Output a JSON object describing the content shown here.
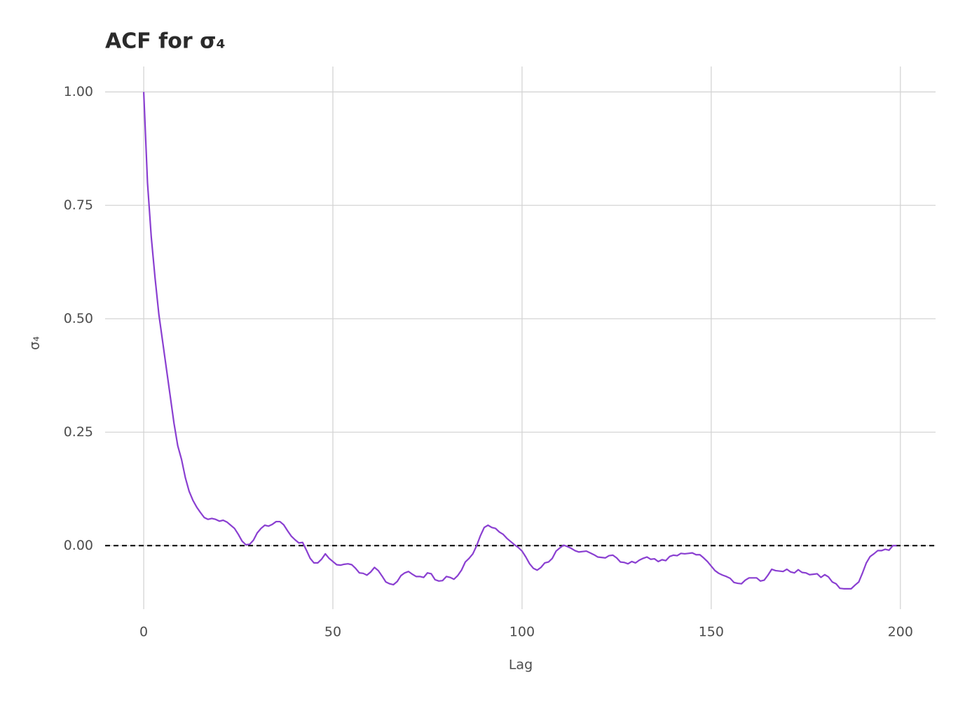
{
  "chart_data": {
    "type": "line",
    "title": "ACF for σ₄",
    "x_label": "Lag",
    "y_label": "σ₄",
    "x": [
      0,
      1,
      2,
      3,
      4,
      5,
      6,
      7,
      8,
      9,
      10,
      11,
      12,
      13,
      14,
      15,
      16,
      17,
      18,
      19,
      20,
      21,
      22,
      23,
      24,
      25,
      26,
      27,
      28,
      29,
      30,
      31,
      32,
      33,
      34,
      35,
      36,
      37,
      38,
      39,
      40,
      41,
      42,
      43,
      44,
      45,
      46,
      47,
      48,
      49,
      50,
      51,
      52,
      53,
      54,
      55,
      56,
      57,
      58,
      59,
      60,
      61,
      62,
      63,
      64,
      65,
      66,
      67,
      68,
      69,
      70,
      71,
      72,
      73,
      74,
      75,
      76,
      77,
      78,
      79,
      80,
      81,
      82,
      83,
      84,
      85,
      86,
      87,
      88,
      89,
      90,
      91,
      92,
      93,
      94,
      95,
      96,
      97,
      98,
      99,
      100,
      101,
      102,
      103,
      104,
      105,
      106,
      107,
      108,
      109,
      110,
      111,
      112,
      113,
      114,
      115,
      116,
      117,
      118,
      119,
      120,
      121,
      122,
      123,
      124,
      125,
      126,
      127,
      128,
      129,
      130,
      131,
      132,
      133,
      134,
      135,
      136,
      137,
      138,
      139,
      140,
      141,
      142,
      143,
      144,
      145,
      146,
      147,
      148,
      149,
      150,
      151,
      152,
      153,
      154,
      155,
      156,
      157,
      158,
      159,
      160,
      161,
      162,
      163,
      164,
      165,
      166,
      167,
      168,
      169,
      170,
      171,
      172,
      173,
      174,
      175,
      176,
      177,
      178,
      179,
      180,
      181,
      182,
      183,
      184,
      185,
      186,
      187,
      188,
      189,
      190,
      191,
      192,
      193,
      194,
      195,
      196,
      197,
      198,
      199
    ],
    "series": [
      {
        "color": "#8a3fd1",
        "values": [
          1.0,
          0.8,
          0.68,
          0.59,
          0.51,
          0.45,
          0.39,
          0.33,
          0.27,
          0.22,
          0.19,
          0.15,
          0.12,
          0.1,
          0.085,
          0.073,
          0.062,
          0.058,
          0.06,
          0.058,
          0.054,
          0.056,
          0.052,
          0.045,
          0.038,
          0.025,
          0.01,
          0.002,
          0.003,
          0.012,
          0.028,
          0.038,
          0.045,
          0.043,
          0.047,
          0.053,
          0.053,
          0.046,
          0.033,
          0.021,
          0.013,
          0.006,
          0.007,
          -0.01,
          -0.028,
          -0.038,
          -0.038,
          -0.03,
          -0.018,
          -0.028,
          -0.035,
          -0.042,
          -0.043,
          -0.041,
          -0.04,
          -0.042,
          -0.05,
          -0.06,
          -0.061,
          -0.065,
          -0.058,
          -0.048,
          -0.055,
          -0.067,
          -0.08,
          -0.084,
          -0.086,
          -0.079,
          -0.066,
          -0.06,
          -0.057,
          -0.063,
          -0.068,
          -0.068,
          -0.07,
          -0.06,
          -0.062,
          -0.075,
          -0.078,
          -0.077,
          -0.068,
          -0.07,
          -0.074,
          -0.066,
          -0.054,
          -0.036,
          -0.028,
          -0.018,
          0.0,
          0.022,
          0.04,
          0.045,
          0.04,
          0.038,
          0.03,
          0.025,
          0.016,
          0.009,
          0.002,
          -0.004,
          -0.012,
          -0.025,
          -0.04,
          -0.05,
          -0.054,
          -0.048,
          -0.038,
          -0.036,
          -0.028,
          -0.012,
          -0.005,
          0.001,
          -0.002,
          -0.006,
          -0.011,
          -0.014,
          -0.013,
          -0.012,
          -0.016,
          -0.02,
          -0.025,
          -0.026,
          -0.027,
          -0.022,
          -0.021,
          -0.027,
          -0.036,
          -0.037,
          -0.04,
          -0.035,
          -0.038,
          -0.032,
          -0.028,
          -0.025,
          -0.03,
          -0.029,
          -0.035,
          -0.031,
          -0.033,
          -0.024,
          -0.021,
          -0.022,
          -0.017,
          -0.018,
          -0.017,
          -0.016,
          -0.02,
          -0.02,
          -0.027,
          -0.035,
          -0.045,
          -0.055,
          -0.061,
          -0.065,
          -0.068,
          -0.072,
          -0.081,
          -0.083,
          -0.084,
          -0.076,
          -0.071,
          -0.071,
          -0.071,
          -0.078,
          -0.076,
          -0.065,
          -0.052,
          -0.055,
          -0.056,
          -0.057,
          -0.052,
          -0.058,
          -0.06,
          -0.053,
          -0.059,
          -0.06,
          -0.064,
          -0.063,
          -0.062,
          -0.07,
          -0.064,
          -0.069,
          -0.08,
          -0.084,
          -0.094,
          -0.095,
          -0.095,
          -0.095,
          -0.087,
          -0.08,
          -0.06,
          -0.038,
          -0.024,
          -0.018,
          -0.011,
          -0.011,
          -0.008,
          -0.01,
          0.0,
          0.0
        ]
      }
    ],
    "reference_line": 0,
    "xlim": [
      -10.2,
      209.3
    ],
    "ylim": [
      -0.14,
      1.056
    ],
    "xticks": [
      0,
      50,
      100,
      150,
      200
    ],
    "yticks": [
      {
        "value": 0,
        "label": "0.00"
      },
      {
        "value": 0.25,
        "label": "0.25"
      },
      {
        "value": 0.5,
        "label": "0.50"
      },
      {
        "value": 0.75,
        "label": "0.75"
      },
      {
        "value": 1,
        "label": "1.00"
      }
    ],
    "grid": true
  }
}
